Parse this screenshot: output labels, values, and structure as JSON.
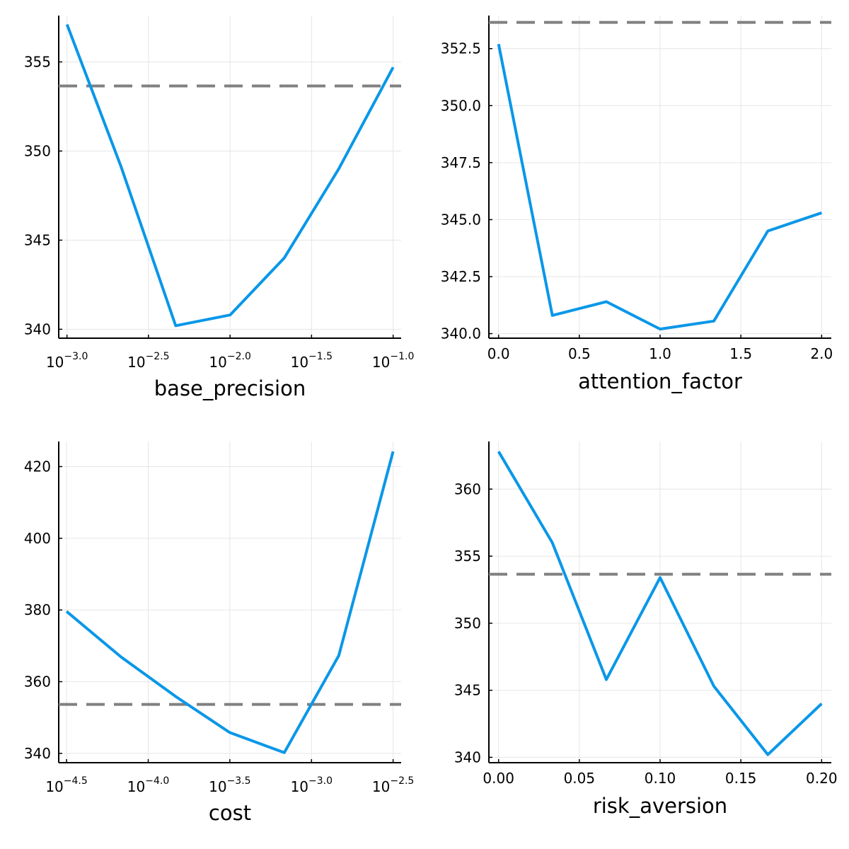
{
  "chart_data": [
    {
      "type": "line",
      "xlabel": "base_precision",
      "ylabel": "",
      "xscale": "log10",
      "x": [
        0.001,
        0.00215,
        0.00464,
        0.01,
        0.0215,
        0.0464,
        0.1
      ],
      "xlim": [
        0.00089,
        0.112
      ],
      "xticks": [
        0.001,
        0.00316,
        0.01,
        0.0316,
        0.1
      ],
      "xtick_labels": [
        {
          "base": "10",
          "exp": "−3.0"
        },
        {
          "base": "10",
          "exp": "−2.5"
        },
        {
          "base": "10",
          "exp": "−2.0"
        },
        {
          "base": "10",
          "exp": "−1.5"
        },
        {
          "base": "10",
          "exp": "−1.0"
        }
      ],
      "ylim": [
        339.5,
        357.6
      ],
      "yticks": [
        340,
        345,
        350,
        355
      ],
      "ytick_labels": [
        "340",
        "345",
        "350",
        "355"
      ],
      "series": [
        {
          "values": [
            357.1,
            349.1,
            340.2,
            340.8,
            344.0,
            349.0,
            354.7
          ],
          "color": "#0a97e8"
        }
      ],
      "reference_line": 353.65,
      "reference_color": "#808080",
      "grid": true
    },
    {
      "type": "line",
      "xlabel": "attention_factor",
      "ylabel": "",
      "xscale": "linear",
      "x": [
        0,
        0.333,
        0.667,
        1.0,
        1.333,
        1.667,
        2.0
      ],
      "xlim": [
        -0.06,
        2.06
      ],
      "xticks": [
        0,
        0.5,
        1.0,
        1.5,
        2.0
      ],
      "xtick_labels": [
        "0.0",
        "0.5",
        "1.0",
        "1.5",
        "2.0"
      ],
      "ylim": [
        339.8,
        353.95
      ],
      "yticks": [
        340.0,
        342.5,
        345.0,
        347.5,
        350.0,
        352.5
      ],
      "ytick_labels": [
        "340.0",
        "342.5",
        "345.0",
        "347.5",
        "350.0",
        "352.5"
      ],
      "series": [
        {
          "values": [
            352.7,
            340.8,
            341.4,
            340.2,
            340.55,
            344.5,
            345.3
          ],
          "color": "#0a97e8"
        }
      ],
      "reference_line": 353.65,
      "reference_color": "#808080",
      "grid": true
    },
    {
      "type": "line",
      "xlabel": "cost",
      "ylabel": "",
      "xscale": "log10",
      "x": [
        3.16e-05,
        6.81e-05,
        0.000147,
        0.000316,
        0.000681,
        0.00147,
        0.00316
      ],
      "xlim": [
        2.83e-05,
        0.00354
      ],
      "xticks": [
        3.16e-05,
        0.0001,
        0.000316,
        0.001,
        0.00316
      ],
      "xtick_labels": [
        {
          "base": "10",
          "exp": "−4.5"
        },
        {
          "base": "10",
          "exp": "−4.0"
        },
        {
          "base": "10",
          "exp": "−3.5"
        },
        {
          "base": "10",
          "exp": "−3.0"
        },
        {
          "base": "10",
          "exp": "−2.5"
        }
      ],
      "ylim": [
        337.4,
        427.0
      ],
      "yticks": [
        340,
        360,
        380,
        400,
        420
      ],
      "ytick_labels": [
        "340",
        "360",
        "380",
        "400",
        "420"
      ],
      "series": [
        {
          "values": [
            379.6,
            366.9,
            355.9,
            345.8,
            340.2,
            367.3,
            424.2
          ],
          "color": "#0a97e8"
        }
      ],
      "reference_line": 353.65,
      "reference_color": "#808080",
      "grid": true
    },
    {
      "type": "line",
      "xlabel": "risk_aversion",
      "ylabel": "",
      "xscale": "linear",
      "x": [
        0,
        0.0333,
        0.0667,
        0.1,
        0.1333,
        0.1667,
        0.2
      ],
      "xlim": [
        -0.006,
        0.206
      ],
      "xticks": [
        0,
        0.05,
        0.1,
        0.15,
        0.2
      ],
      "xtick_labels": [
        "0.00",
        "0.05",
        "0.10",
        "0.15",
        "0.20"
      ],
      "ylim": [
        339.6,
        363.55
      ],
      "yticks": [
        340,
        345,
        350,
        355,
        360
      ],
      "ytick_labels": [
        "340",
        "345",
        "350",
        "355",
        "360"
      ],
      "series": [
        {
          "values": [
            362.8,
            356.0,
            345.8,
            353.4,
            345.3,
            340.2,
            344.0
          ],
          "color": "#0a97e8"
        }
      ],
      "reference_line": 353.65,
      "reference_color": "#808080",
      "grid": true
    }
  ]
}
